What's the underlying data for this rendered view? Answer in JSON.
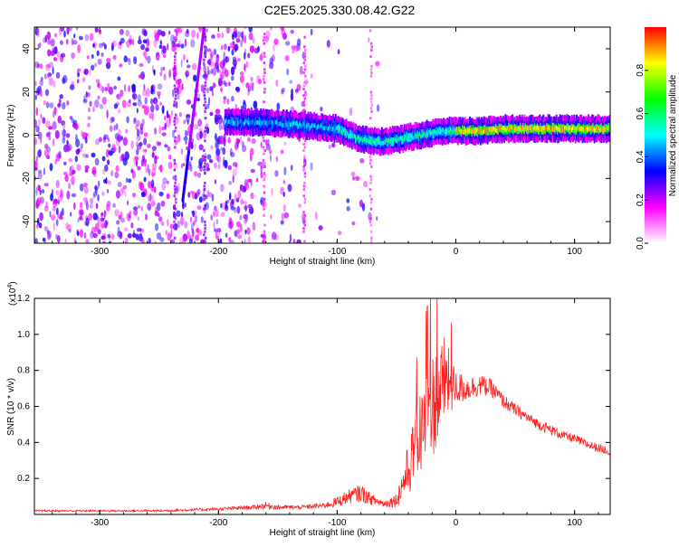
{
  "title": "C2E5.2025.330.08.42.G22",
  "chart_data": [
    {
      "type": "heatmap",
      "xlabel": "Height of straight line (km)",
      "ylabel": "Frequency (Hz)",
      "xlim": [
        -355,
        130
      ],
      "ylim": [
        -50,
        50
      ],
      "x_ticks": [
        -300,
        -200,
        -100,
        0,
        100
      ],
      "y_ticks": [
        -40,
        -20,
        0,
        20,
        40
      ],
      "colorbar": {
        "label": "Normalized spectral amplitude",
        "range": [
          0,
          1
        ],
        "ticks": [
          "0.0",
          "0.2",
          "0.4",
          "0.6",
          "0.8"
        ],
        "colormap": [
          "#ffffff",
          "#ff00ff",
          "#0000ff",
          "#00ffff",
          "#00ff00",
          "#ffff00",
          "#ff0000"
        ]
      },
      "ridge": {
        "x": [
          -195,
          -170,
          -140,
          -120,
          -100,
          -90,
          -80,
          -70,
          -60,
          -50,
          -40,
          -30,
          -20,
          -10,
          0,
          20,
          40,
          60,
          80,
          100,
          130
        ],
        "y": [
          6,
          6,
          5,
          4,
          3,
          0,
          -2,
          -3,
          -3,
          -2,
          -1,
          0,
          1,
          2,
          2,
          2,
          3,
          3,
          3,
          3,
          3
        ]
      }
    },
    {
      "type": "line",
      "xlabel": "Height of straight line (km)",
      "ylabel": "SNR (10 * v/v)",
      "y_multiplier": "(x10",
      "y_multiplier_exp": "4",
      "y_multiplier_close": ")",
      "xlim": [
        -355,
        130
      ],
      "ylim": [
        0,
        1.2
      ],
      "x_ticks": [
        -300,
        -200,
        -100,
        0,
        100
      ],
      "y_ticks": [
        "0.2",
        "0.4",
        "0.6",
        "0.8",
        "1.0",
        "1.2"
      ],
      "series": [
        {
          "color": "#ff2020",
          "x": [
            -355,
            -300,
            -250,
            -200,
            -170,
            -160,
            -150,
            -130,
            -110,
            -100,
            -90,
            -80,
            -70,
            -60,
            -50,
            -40,
            -30,
            -20,
            -10,
            0,
            10,
            20,
            30,
            40,
            50,
            60,
            70,
            80,
            90,
            100,
            110,
            120,
            130
          ],
          "y": [
            0.02,
            0.02,
            0.02,
            0.03,
            0.04,
            0.05,
            0.04,
            0.04,
            0.05,
            0.07,
            0.1,
            0.12,
            0.08,
            0.06,
            0.08,
            0.25,
            0.45,
            0.6,
            0.75,
            0.7,
            0.7,
            0.72,
            0.7,
            0.63,
            0.58,
            0.54,
            0.5,
            0.47,
            0.44,
            0.42,
            0.39,
            0.37,
            0.35
          ],
          "noise": [
            0.005,
            0.005,
            0.006,
            0.008,
            0.012,
            0.02,
            0.012,
            0.012,
            0.015,
            0.03,
            0.04,
            0.05,
            0.03,
            0.02,
            0.04,
            0.15,
            0.25,
            0.3,
            0.25,
            0.1,
            0.07,
            0.06,
            0.05,
            0.04,
            0.035,
            0.03,
            0.03,
            0.03,
            0.025,
            0.025,
            0.025,
            0.025,
            0.025
          ]
        }
      ]
    }
  ]
}
